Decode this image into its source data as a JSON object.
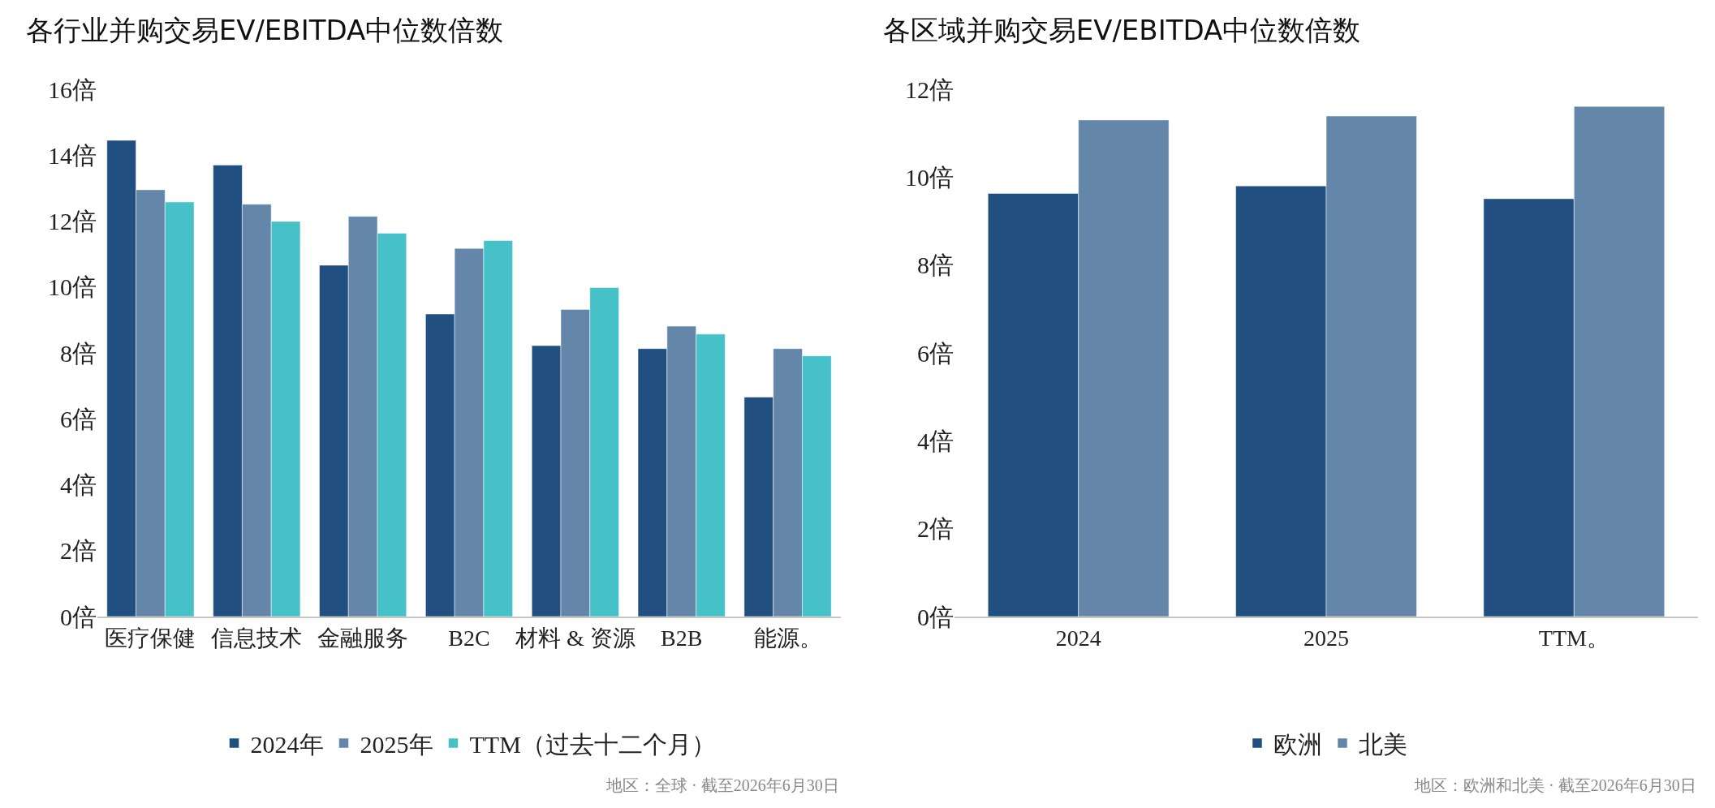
{
  "chart_data": [
    {
      "type": "bar",
      "title": "各行业并购交易EV/EBITDA中位数倍数",
      "categories": [
        "医疗保健",
        "信息技术",
        "金融服务",
        "B2C",
        "材料 & 资源",
        "B2B",
        "能源。"
      ],
      "series": [
        {
          "name": "2024年",
          "color": "#215080",
          "values": [
            14.45,
            13.7,
            10.66,
            9.18,
            8.22,
            8.13,
            6.66
          ]
        },
        {
          "name": "2025年",
          "color": "#6486a8",
          "values": [
            12.95,
            12.51,
            12.14,
            11.17,
            9.32,
            8.81,
            8.13
          ]
        },
        {
          "name": "TTM（过去十二个月）",
          "color": "#47c1c8",
          "values": [
            12.58,
            11.99,
            11.63,
            11.41,
            9.98,
            8.57,
            7.91
          ]
        }
      ],
      "ylim": [
        0,
        16
      ],
      "yticks": [
        {
          "value": 0,
          "label": "0倍"
        },
        {
          "value": 2,
          "label": "2倍"
        },
        {
          "value": 4,
          "label": "4倍"
        },
        {
          "value": 6,
          "label": "6倍"
        },
        {
          "value": 8,
          "label": "8倍"
        },
        {
          "value": 10,
          "label": "10倍"
        },
        {
          "value": 12,
          "label": "12倍"
        },
        {
          "value": 14,
          "label": "14倍"
        },
        {
          "value": 16,
          "label": "16倍"
        }
      ],
      "grid": false,
      "legend": "bottom",
      "annotations": [
        "地区：全球 · 截至2026年6月30日"
      ]
    },
    {
      "type": "bar",
      "title": "各区域并购交易EV/EBITDA中位数倍数",
      "categories": [
        "2024",
        "2025",
        "TTM。"
      ],
      "series": [
        {
          "name": "欧洲",
          "color": "#215080",
          "values": [
            9.63,
            9.8,
            9.51
          ]
        },
        {
          "name": "北美",
          "color": "#6486a8",
          "values": [
            11.3,
            11.39,
            11.61
          ]
        }
      ],
      "ylim": [
        0,
        12
      ],
      "yticks": [
        {
          "value": 0,
          "label": "0倍"
        },
        {
          "value": 2,
          "label": "2倍"
        },
        {
          "value": 4,
          "label": "4倍"
        },
        {
          "value": 6,
          "label": "6倍"
        },
        {
          "value": 8,
          "label": "8倍"
        },
        {
          "value": 10,
          "label": "10倍"
        },
        {
          "value": 12,
          "label": "12倍"
        }
      ],
      "grid": false,
      "legend": "bottom",
      "annotations": [
        "地区：欧洲和北美 · 截至2026年6月30日"
      ]
    }
  ]
}
